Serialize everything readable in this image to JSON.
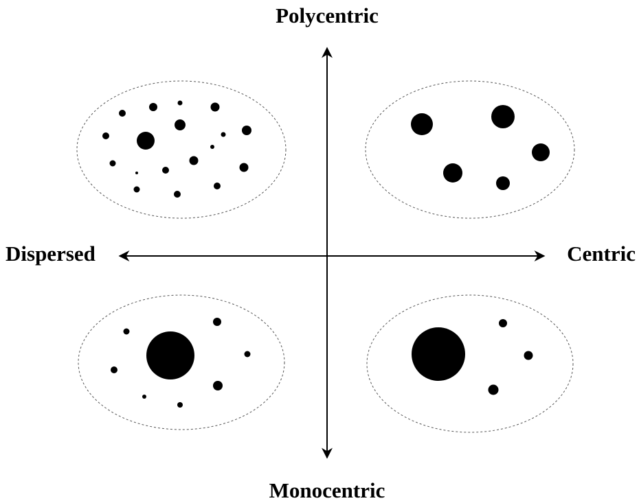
{
  "axes": {
    "top": "Polycentric",
    "bottom": "Monocentric",
    "left": "Dispersed",
    "right": "Centric"
  }
}
